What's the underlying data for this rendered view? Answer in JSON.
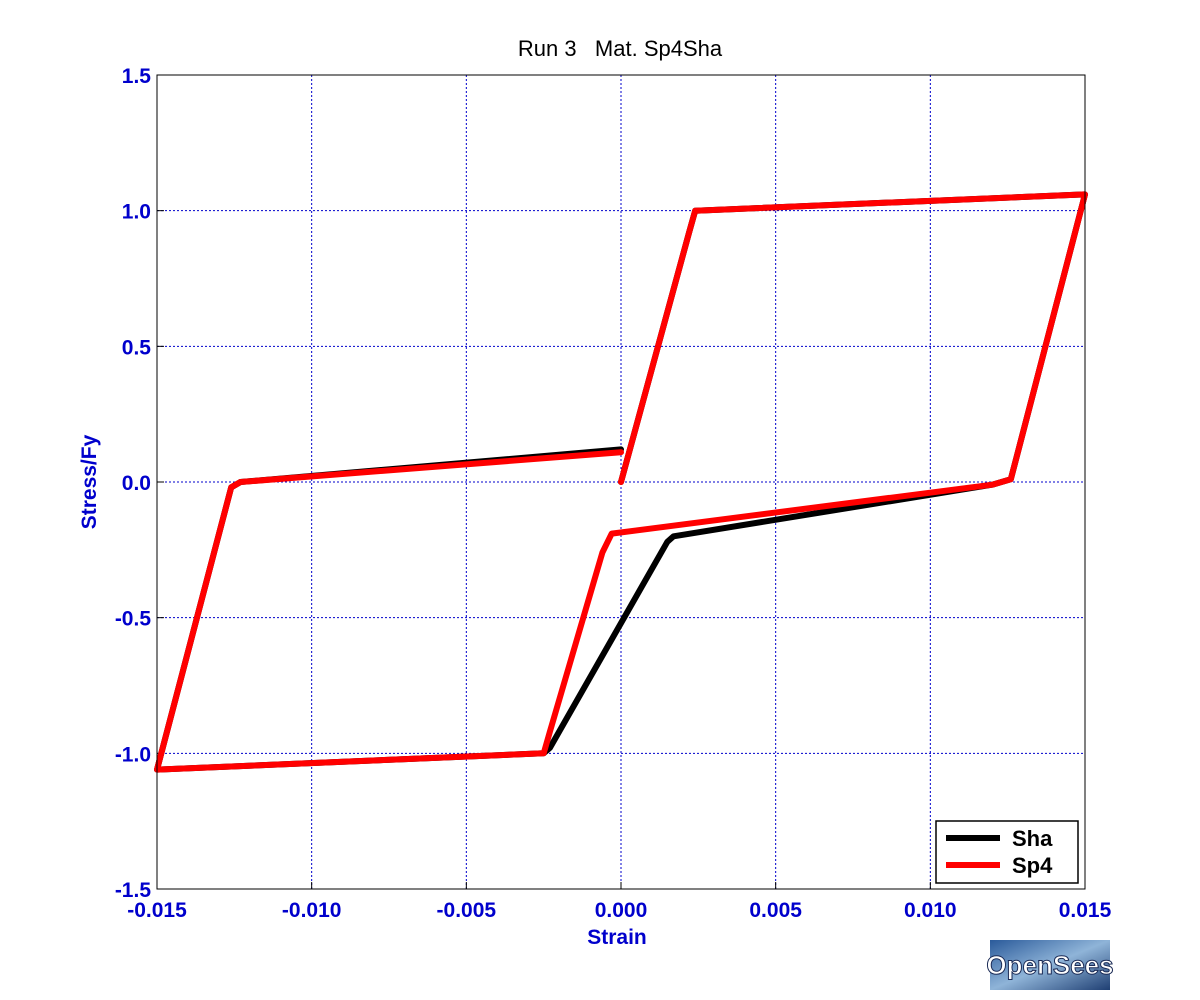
{
  "logo": {
    "text": "OpenSees"
  },
  "colors": {
    "axis_text": "#0000cc",
    "grid": "#0000cc",
    "background": "#ffffff"
  },
  "chart_data": {
    "type": "line",
    "title": "Run 3   Mat. Sp4Sha",
    "xlabel": "Strain",
    "ylabel": "Stress/Fy",
    "xlim": [
      -0.015,
      0.015
    ],
    "ylim": [
      -1.5,
      1.5
    ],
    "xticks": [
      -0.015,
      -0.01,
      -0.005,
      0.0,
      0.005,
      0.01,
      0.015
    ],
    "xtick_labels": [
      "-0.015",
      "-0.010",
      "-0.005",
      "0.000",
      "0.005",
      "0.010",
      "0.015"
    ],
    "yticks": [
      -1.5,
      -1.0,
      -0.5,
      0.0,
      0.5,
      1.0,
      1.5
    ],
    "ytick_labels": [
      "-1.5",
      "-1.0",
      "-0.5",
      "0.0",
      "0.5",
      "1.0",
      "1.5"
    ],
    "grid": true,
    "legend": "bottom-right",
    "series": [
      {
        "name": "Sha",
        "color": "#000000",
        "x": [
          0.0,
          0.0022,
          0.0024,
          0.015,
          0.0126,
          0.012,
          0.0017,
          0.0015,
          0.0,
          -0.0023,
          -0.0025,
          -0.015,
          -0.0126,
          -0.0123,
          0.0
        ],
        "y": [
          0.0,
          0.92,
          1.0,
          1.06,
          0.01,
          -0.01,
          -0.2,
          -0.22,
          -0.52,
          -0.98,
          -1.0,
          -1.06,
          -0.02,
          0.0,
          0.12
        ]
      },
      {
        "name": "Sp4",
        "color": "#ff0000",
        "x": [
          0.0,
          0.0022,
          0.0024,
          0.015,
          0.0126,
          0.012,
          -0.0003,
          -0.0006,
          -0.0023,
          -0.0025,
          -0.015,
          -0.0126,
          -0.0123,
          0.0
        ],
        "y": [
          0.0,
          0.92,
          1.0,
          1.06,
          0.01,
          -0.01,
          -0.19,
          -0.26,
          -0.92,
          -1.0,
          -1.06,
          -0.02,
          0.0,
          0.11
        ]
      }
    ]
  }
}
